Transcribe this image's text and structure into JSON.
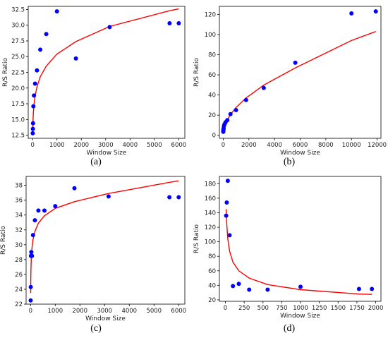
{
  "chart_data": [
    {
      "panel": "(a)",
      "type": "scatter",
      "xlabel": "Window Size",
      "ylabel": "R/S Ratio",
      "xlim": [
        -180,
        6250
      ],
      "ylim": [
        12.0,
        33.0
      ],
      "xticks": [
        0,
        1000,
        2000,
        3000,
        4000,
        5000,
        6000
      ],
      "yticks": [
        12.5,
        15.0,
        17.5,
        20.0,
        22.5,
        25.0,
        27.5,
        30.0,
        32.5
      ],
      "ytick_labels": [
        "12.5",
        "15.0",
        "17.5",
        "20.0",
        "22.5",
        "25.0",
        "27.5",
        "30.0",
        "32.5"
      ],
      "grid": false,
      "points": {
        "x": [
          5,
          10,
          18,
          32,
          56,
          100,
          178,
          316,
          562,
          1000,
          1778,
          3162,
          5623,
          6000
        ],
        "y": [
          12.8,
          13.5,
          14.4,
          17.1,
          18.8,
          20.7,
          22.8,
          26.1,
          28.6,
          32.2,
          24.7,
          29.7,
          30.3,
          30.3
        ]
      },
      "fit_curve": {
        "x": [
          5,
          10,
          18,
          32,
          56,
          100,
          178,
          316,
          562,
          1000,
          1778,
          3162,
          5623,
          6000
        ],
        "y": [
          12.9,
          13.9,
          14.9,
          16.1,
          17.3,
          18.7,
          20.2,
          21.8,
          23.5,
          25.4,
          27.4,
          29.8,
          32.3,
          32.6
        ]
      },
      "colors": {
        "points": "#0000ff",
        "fit": "#ff0000"
      }
    },
    {
      "panel": "(b)",
      "type": "scatter",
      "xlabel": "Window Size",
      "ylabel": "R/S Ratio",
      "xlim": [
        -300,
        12300
      ],
      "ylim": [
        -3,
        128
      ],
      "xticks": [
        0,
        2000,
        4000,
        6000,
        8000,
        10000,
        12000
      ],
      "yticks": [
        0,
        20,
        40,
        60,
        80,
        100,
        120
      ],
      "ytick_labels": [
        "0",
        "20",
        "40",
        "60",
        "80",
        "100",
        "120"
      ],
      "grid": false,
      "points": {
        "x": [
          5,
          10,
          18,
          32,
          56,
          100,
          178,
          316,
          562,
          1000,
          1778,
          3162,
          5623,
          10000,
          11900
        ],
        "y": [
          3.5,
          5,
          6,
          7,
          9.5,
          11,
          13,
          15,
          21,
          25,
          35,
          47,
          72,
          121,
          123
        ]
      },
      "fit_curve": {
        "x": [
          5,
          10,
          18,
          32,
          56,
          100,
          178,
          316,
          562,
          1000,
          1778,
          3162,
          5623,
          10000,
          11900
        ],
        "y": [
          1.8,
          2.6,
          3.5,
          4.7,
          6.3,
          8.5,
          11.4,
          15.3,
          20.6,
          27.6,
          37.1,
          49.8,
          66.9,
          94.1,
          103
        ]
      },
      "colors": {
        "points": "#0000ff",
        "fit": "#ff0000"
      }
    },
    {
      "panel": "(c)",
      "type": "scatter",
      "xlabel": "Window Size",
      "ylabel": "R/S Ratio",
      "xlim": [
        -180,
        6250
      ],
      "ylim": [
        22,
        39.2
      ],
      "xticks": [
        0,
        1000,
        2000,
        3000,
        4000,
        5000,
        6000
      ],
      "yticks": [
        22,
        24,
        26,
        28,
        30,
        32,
        34,
        36,
        38
      ],
      "ytick_labels": [
        "22",
        "24",
        "26",
        "28",
        "30",
        "32",
        "34",
        "36",
        "38"
      ],
      "grid": false,
      "points": {
        "x": [
          5,
          10,
          18,
          32,
          56,
          100,
          178,
          316,
          562,
          1000,
          1778,
          3162,
          5623,
          6000
        ],
        "y": [
          22.5,
          24.3,
          28.5,
          29.0,
          28.5,
          31.3,
          33.3,
          34.6,
          34.6,
          35.2,
          37.6,
          36.5,
          36.4,
          36.4
        ]
      },
      "fit_curve": {
        "x": [
          5,
          10,
          18,
          32,
          56,
          100,
          178,
          316,
          562,
          1000,
          1778,
          3162,
          5623,
          6000
        ],
        "y": [
          23.5,
          25.3,
          26.8,
          28.2,
          29.5,
          30.7,
          31.8,
          32.9,
          33.9,
          34.9,
          35.8,
          36.9,
          38.4,
          38.6
        ]
      },
      "colors": {
        "points": "#0000ff",
        "fit": "#ff0000"
      }
    },
    {
      "panel": "(d)",
      "type": "scatter",
      "xlabel": "Window Size",
      "ylabel": "R/S Ratio",
      "xlim": [
        -80,
        2070
      ],
      "ylim": [
        18,
        190
      ],
      "xticks": [
        0,
        250,
        500,
        750,
        1000,
        1250,
        1500,
        1750,
        2000
      ],
      "yticks": [
        20,
        40,
        60,
        80,
        100,
        120,
        140,
        160,
        180
      ],
      "ytick_labels": [
        "20",
        "40",
        "60",
        "80",
        "100",
        "120",
        "140",
        "160",
        "180"
      ],
      "grid": false,
      "points": {
        "x": [
          10,
          18,
          32,
          56,
          100,
          178,
          316,
          562,
          1000,
          1778,
          1950
        ],
        "y": [
          136,
          154,
          184,
          109,
          39,
          42,
          34,
          34,
          38,
          35,
          35
        ]
      },
      "fit_curve": {
        "x": [
          10,
          18,
          32,
          56,
          100,
          178,
          316,
          562,
          1000,
          1778,
          1950
        ],
        "y": [
          145,
          125,
          104,
          87,
          72,
          60,
          50,
          41,
          34,
          28,
          27.5
        ]
      },
      "colors": {
        "points": "#0000ff",
        "fit": "#ff0000"
      }
    }
  ]
}
